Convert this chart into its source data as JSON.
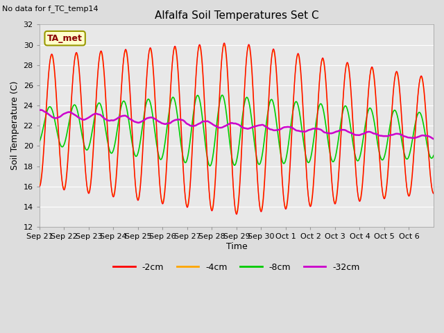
{
  "title": "Alfalfa Soil Temperatures Set C",
  "no_data_text": "No data for f_TC_temp14",
  "ylabel": "Soil Temperature (C)",
  "xlabel": "Time",
  "ylim": [
    12,
    32
  ],
  "yticks": [
    12,
    14,
    16,
    18,
    20,
    22,
    24,
    26,
    28,
    30,
    32
  ],
  "background_color": "#dddddd",
  "plot_bg_color": "#e8e8e8",
  "grid_color": "#ffffff",
  "x_tick_labels": [
    "Sep 21",
    "Sep 22",
    "Sep 23",
    "Sep 24",
    "Sep 25",
    "Sep 26",
    "Sep 27",
    "Sep 28",
    "Sep 29",
    "Sep 30",
    "Oct 1",
    "Oct 2",
    "Oct 3",
    "Oct 4",
    "Oct 5",
    "Oct 6"
  ],
  "legend_label_box": "TA_met",
  "legend_entries": [
    "-2cm",
    "-4cm",
    "-8cm",
    "-32cm"
  ],
  "legend_colors": [
    "#ff0000",
    "#ffa500",
    "#00cc00",
    "#cc00cc"
  ],
  "line_colors": {
    "cm2": "#ff0000",
    "cm4": "#ffa500",
    "cm8": "#00cc00",
    "cm32": "#cc00cc"
  },
  "n_days": 16,
  "pts_per_day": 72
}
